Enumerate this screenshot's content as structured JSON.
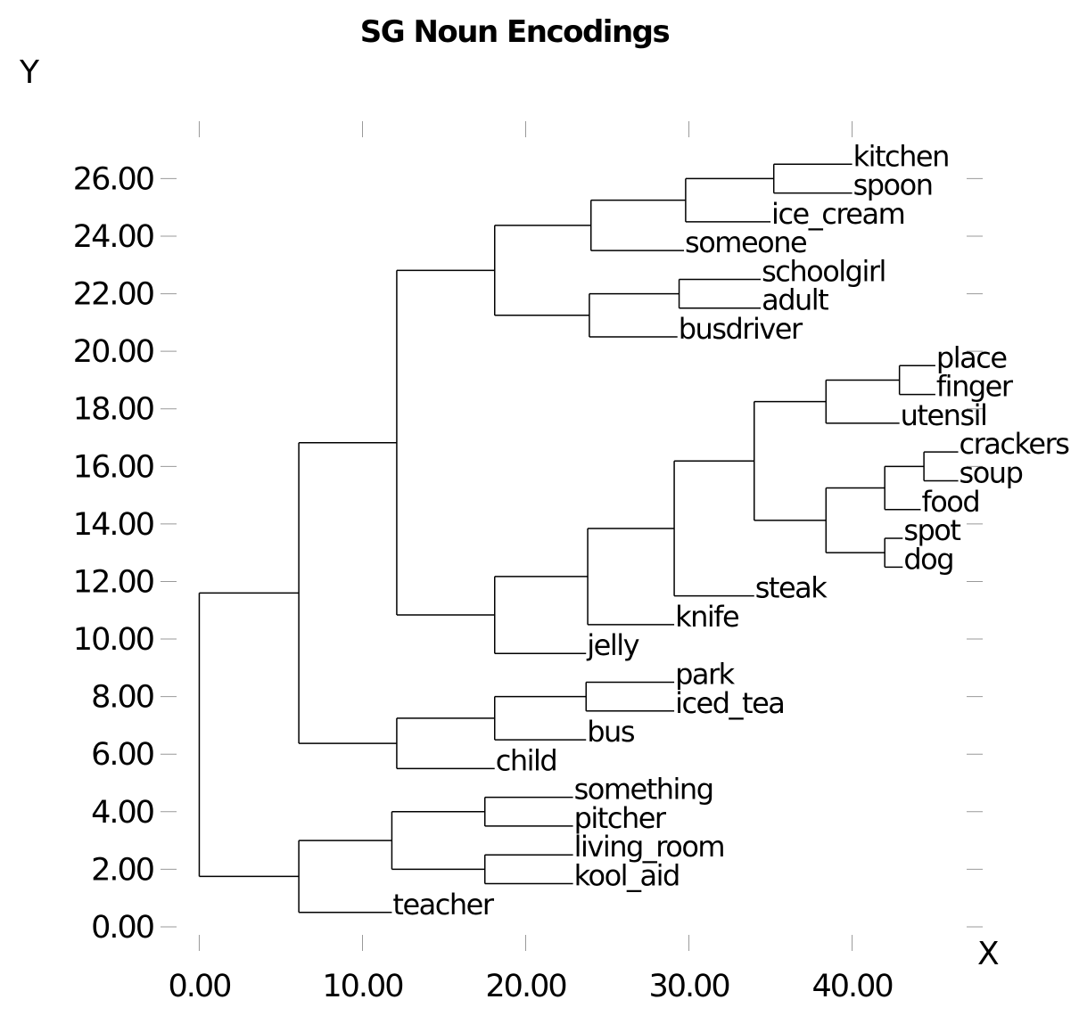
{
  "chart_data": {
    "type": "dendrogram",
    "title": "SG Noun Encodings",
    "xlabel": "X",
    "ylabel": "Y",
    "xlim": [
      -1.5,
      48
    ],
    "ylim": [
      -0.9,
      27.5
    ],
    "x_ticks": [
      "0.00",
      "10.00",
      "20.00",
      "30.00",
      "40.00"
    ],
    "x_tick_values": [
      0,
      10,
      20,
      30,
      40
    ],
    "y_ticks": [
      "0.00",
      "2.00",
      "4.00",
      "6.00",
      "8.00",
      "10.00",
      "12.00",
      "14.00",
      "16.00",
      "18.00",
      "20.00",
      "22.00",
      "24.00",
      "26.00"
    ],
    "y_tick_values": [
      0,
      2,
      4,
      6,
      8,
      10,
      12,
      14,
      16,
      18,
      20,
      22,
      24,
      26
    ],
    "leaves": [
      {
        "label": "kitchen",
        "x": 40.0,
        "y": 26.5
      },
      {
        "label": "spoon",
        "x": 40.0,
        "y": 25.5
      },
      {
        "label": "ice_cream",
        "x": 35.0,
        "y": 24.5
      },
      {
        "label": "someone",
        "x": 29.7,
        "y": 23.5
      },
      {
        "label": "schoolgirl",
        "x": 34.4,
        "y": 22.5
      },
      {
        "label": "adult",
        "x": 34.4,
        "y": 21.5
      },
      {
        "label": "busdriver",
        "x": 29.3,
        "y": 20.5
      },
      {
        "label": "place",
        "x": 45.1,
        "y": 19.5
      },
      {
        "label": "finger",
        "x": 45.1,
        "y": 18.5
      },
      {
        "label": "utensil",
        "x": 42.9,
        "y": 17.5
      },
      {
        "label": "crackers",
        "x": 46.5,
        "y": 16.5
      },
      {
        "label": "soup",
        "x": 46.5,
        "y": 15.5
      },
      {
        "label": "food",
        "x": 44.2,
        "y": 14.5
      },
      {
        "label": "spot",
        "x": 43.1,
        "y": 13.5
      },
      {
        "label": "dog",
        "x": 43.1,
        "y": 12.5
      },
      {
        "label": "steak",
        "x": 34.0,
        "y": 11.5
      },
      {
        "label": "knife",
        "x": 29.1,
        "y": 10.5
      },
      {
        "label": "jelly",
        "x": 23.7,
        "y": 9.5
      },
      {
        "label": "park",
        "x": 29.1,
        "y": 8.5
      },
      {
        "label": "iced_tea",
        "x": 29.1,
        "y": 7.5
      },
      {
        "label": "bus",
        "x": 23.7,
        "y": 6.5
      },
      {
        "label": "child",
        "x": 18.1,
        "y": 5.5
      },
      {
        "label": "something",
        "x": 22.9,
        "y": 4.5
      },
      {
        "label": "pitcher",
        "x": 22.9,
        "y": 3.5
      },
      {
        "label": "living_room",
        "x": 22.9,
        "y": 2.5
      },
      {
        "label": "kool_aid",
        "x": 22.9,
        "y": 1.5
      },
      {
        "label": "teacher",
        "x": 11.8,
        "y": 0.5
      }
    ],
    "merges": [
      {
        "x": 35.2,
        "children": [
          0,
          1
        ]
      },
      {
        "x": 29.8,
        "children": [
          27,
          2
        ]
      },
      {
        "x": 24.0,
        "children": [
          28,
          3
        ]
      },
      {
        "x": 29.4,
        "children": [
          4,
          5
        ]
      },
      {
        "x": 23.9,
        "children": [
          30,
          6
        ]
      },
      {
        "x": 18.1,
        "children": [
          29,
          31
        ]
      },
      {
        "x": 42.9,
        "children": [
          7,
          8
        ]
      },
      {
        "x": 38.4,
        "children": [
          33,
          9
        ]
      },
      {
        "x": 44.4,
        "children": [
          10,
          11
        ]
      },
      {
        "x": 42.0,
        "children": [
          35,
          12
        ]
      },
      {
        "x": 42.0,
        "children": [
          13,
          14
        ]
      },
      {
        "x": 38.4,
        "children": [
          36,
          37
        ]
      },
      {
        "x": 34.0,
        "children": [
          34,
          38
        ]
      },
      {
        "x": 29.1,
        "children": [
          39,
          15
        ]
      },
      {
        "x": 23.8,
        "children": [
          40,
          16
        ]
      },
      {
        "x": 18.1,
        "children": [
          41,
          17
        ]
      },
      {
        "x": 12.1,
        "children": [
          32,
          42
        ]
      },
      {
        "x": 23.7,
        "children": [
          18,
          19
        ]
      },
      {
        "x": 18.1,
        "children": [
          44,
          20
        ]
      },
      {
        "x": 12.1,
        "children": [
          45,
          21
        ]
      },
      {
        "x": 6.1,
        "children": [
          43,
          46
        ]
      },
      {
        "x": 17.5,
        "children": [
          22,
          23
        ]
      },
      {
        "x": 17.5,
        "children": [
          24,
          25
        ]
      },
      {
        "x": 11.8,
        "children": [
          48,
          49
        ]
      },
      {
        "x": 6.1,
        "children": [
          50,
          26
        ]
      },
      {
        "x": 0.0,
        "children": [
          47,
          51
        ]
      }
    ],
    "root_stem": {
      "x": 0.0,
      "y": 6.6
    },
    "grid": false,
    "legend": "none"
  }
}
